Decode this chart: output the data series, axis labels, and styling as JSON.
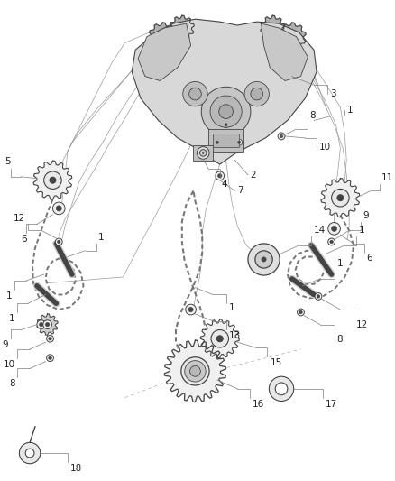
{
  "bg_color": "#ffffff",
  "lc": "#888888",
  "lc_dark": "#444444",
  "lc_chain": "#777777",
  "figsize": [
    4.38,
    5.33
  ],
  "dpi": 100,
  "label_fs": 7.5,
  "label_color": "#222222",
  "leader_lw": 0.55,
  "leader_color": "#666666"
}
